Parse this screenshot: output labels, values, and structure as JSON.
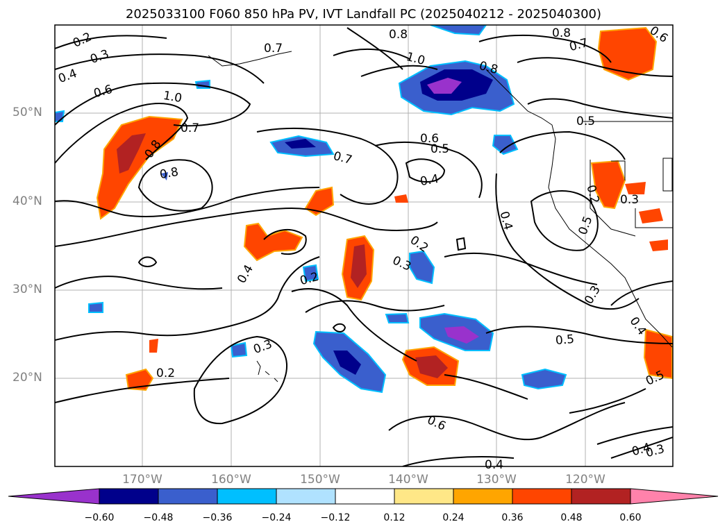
{
  "title": "2025033100 F060 850 hPa PV, IVT Landfall PC (2025040212 - 2025040300)",
  "lat_labels": [
    "50°N",
    "40°N",
    "30°N",
    "20°N"
  ],
  "lon_labels": [
    "170°W",
    "160°W",
    "150°W",
    "140°W",
    "130°W",
    "120°W"
  ],
  "colorbar": {
    "colors": [
      "#9932CC",
      "#00008B",
      "#3A5FCD",
      "#00BFFF",
      "#B0E2FF",
      "#FFFFFF",
      "#FFE787",
      "#FFA500",
      "#FF4500",
      "#B22222",
      "#FF82AB"
    ],
    "tick_labels": [
      "−0.60",
      "−0.48",
      "−0.36",
      "−0.24",
      "−0.12",
      "0.12",
      "0.24",
      "0.36",
      "0.48",
      "0.60"
    ]
  },
  "contour_labels": [
    "0.2",
    "0.3",
    "0.4",
    "0.6",
    "1.0",
    "0.8",
    "0.7",
    "0.8",
    "0.8",
    "0.7",
    "0.6",
    "0.5",
    "0.4",
    "0.7",
    "0.8",
    "1.0",
    "0.8",
    "0.7",
    "0.5",
    "0.3",
    "0.2",
    "0.4",
    "0.2",
    "0.3",
    "0.4",
    "0.5",
    "0.3",
    "0.4",
    "0.6",
    "0.4",
    "0.5",
    "0.4",
    "0.3",
    "0.2",
    "0.3",
    "0.5",
    "0.6",
    "0.2"
  ]
}
